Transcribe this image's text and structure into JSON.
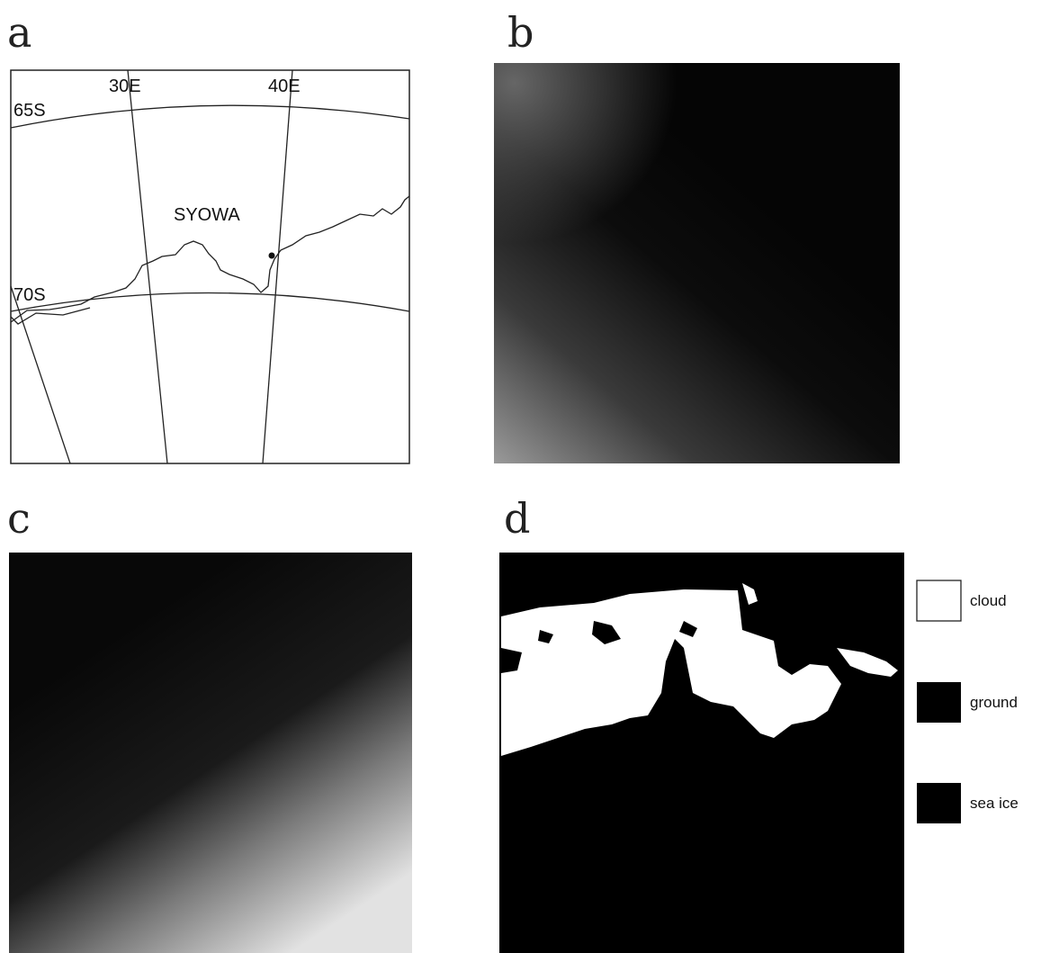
{
  "panels": {
    "a": {
      "label": "a",
      "map": {
        "lat_labels": [
          "65S",
          "70S"
        ],
        "lon_labels": [
          "30E",
          "40E"
        ],
        "station": "SYOWA"
      }
    },
    "b": {
      "label": "b"
    },
    "c": {
      "label": "c"
    },
    "d": {
      "label": "d",
      "legend": [
        "cloud",
        "ground",
        "sea ice"
      ]
    }
  }
}
